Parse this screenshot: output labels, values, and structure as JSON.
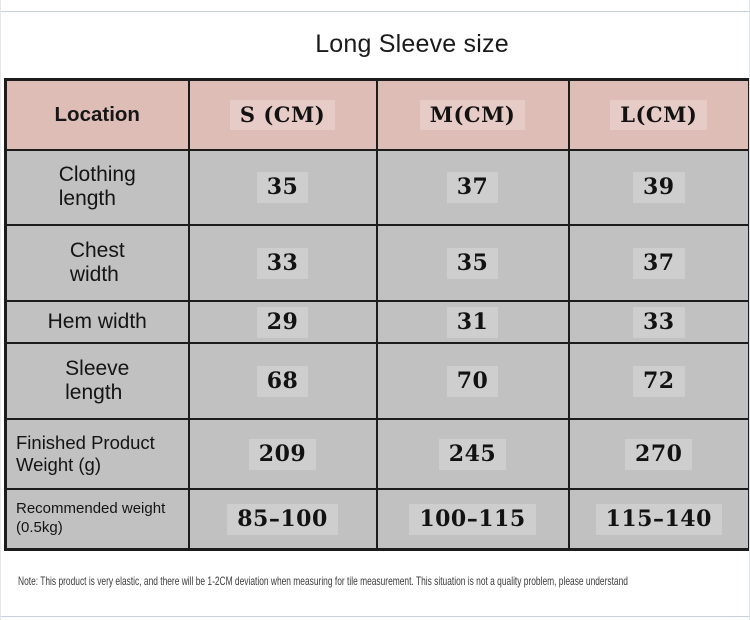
{
  "page": {
    "title": "Long Sleeve size",
    "note": "Note: This product is very elastic, and there will be 1-2CM deviation when measuring for tile measurement. This situation is not a quality problem, please understand"
  },
  "table": {
    "header": {
      "location": "Location",
      "sizes": [
        "S (CM)",
        "M(CM)",
        "L(CM)"
      ]
    },
    "rows": [
      {
        "label": "Clothing\nlength",
        "values": [
          "35",
          "37",
          "39"
        ]
      },
      {
        "label": "Chest\nwidth",
        "values": [
          "33",
          "35",
          "37"
        ]
      },
      {
        "label": "Hem width",
        "values": [
          "29",
          "31",
          "33"
        ]
      },
      {
        "label": "Sleeve\nlength",
        "values": [
          "68",
          "70",
          "72"
        ]
      },
      {
        "label": "Finished Product\nWeight (g)",
        "values": [
          "209",
          "245",
          "270"
        ]
      },
      {
        "label": "Recommended weight\n(0.5kg)",
        "values": [
          "85–100",
          "100–115",
          "115–140"
        ]
      }
    ]
  },
  "colors": {
    "header_bg": "#dfbdb7",
    "row_bg": "#c1c1c1",
    "border": "#1c1c1c",
    "hairline": "#c9d0dd"
  },
  "chart_data": {
    "type": "table",
    "title": "Long Sleeve size",
    "columns": [
      "Location",
      "S (CM)",
      "M(CM)",
      "L(CM)"
    ],
    "rows": [
      [
        "Clothing length",
        35,
        37,
        39
      ],
      [
        "Chest width",
        33,
        35,
        37
      ],
      [
        "Hem width",
        29,
        31,
        33
      ],
      [
        "Sleeve length",
        68,
        70,
        72
      ],
      [
        "Finished Product Weight (g)",
        209,
        245,
        270
      ],
      [
        "Recommended weight (0.5kg)",
        "85-100",
        "100-115",
        "115-140"
      ]
    ],
    "note": "Note: This product is very elastic, and there will be 1-2CM deviation when measuring for tile measurement. This situation is not a quality problem, please understand"
  }
}
